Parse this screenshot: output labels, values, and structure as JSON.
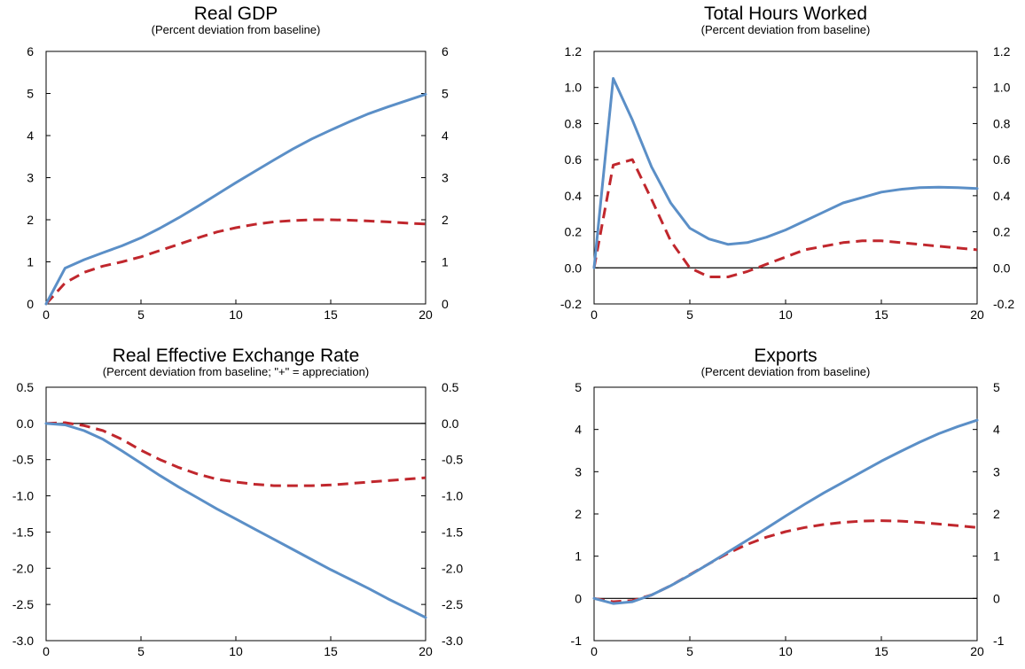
{
  "colors": {
    "solid_line": "#5b8fc7",
    "dashed_line": "#c0272d",
    "axis": "#000000"
  },
  "chart_data": [
    {
      "type": "line",
      "title": "Real GDP",
      "subtitle": "(Percent deviation from baseline)",
      "x": [
        0,
        1,
        2,
        3,
        4,
        5,
        6,
        7,
        8,
        9,
        10,
        11,
        12,
        13,
        14,
        15,
        16,
        17,
        18,
        19,
        20
      ],
      "xticks": [
        0,
        5,
        10,
        15,
        20
      ],
      "xlim": [
        0,
        20
      ],
      "ylim": [
        0,
        6
      ],
      "yticks": [
        0,
        1,
        2,
        3,
        4,
        5,
        6
      ],
      "ytick_labels": [
        "0",
        "1",
        "2",
        "3",
        "4",
        "5",
        "6"
      ],
      "zero_line": false,
      "series": [
        {
          "style": "solid",
          "values": [
            0,
            0.85,
            1.05,
            1.22,
            1.38,
            1.57,
            1.8,
            2.05,
            2.32,
            2.6,
            2.88,
            3.15,
            3.42,
            3.68,
            3.92,
            4.13,
            4.33,
            4.52,
            4.68,
            4.83,
            4.98
          ]
        },
        {
          "style": "dashed",
          "values": [
            0,
            0.5,
            0.75,
            0.9,
            1.0,
            1.12,
            1.27,
            1.42,
            1.57,
            1.71,
            1.81,
            1.89,
            1.95,
            1.98,
            2.0,
            2.0,
            1.99,
            1.97,
            1.95,
            1.92,
            1.9
          ]
        }
      ]
    },
    {
      "type": "line",
      "title": "Total Hours Worked",
      "subtitle": "(Percent deviation from baseline)",
      "x": [
        0,
        1,
        2,
        3,
        4,
        5,
        6,
        7,
        8,
        9,
        10,
        11,
        12,
        13,
        14,
        15,
        16,
        17,
        18,
        19,
        20
      ],
      "xticks": [
        0,
        5,
        10,
        15,
        20
      ],
      "xlim": [
        0,
        20
      ],
      "ylim": [
        -0.2,
        1.2
      ],
      "yticks": [
        -0.2,
        0,
        0.2,
        0.4,
        0.6,
        0.8,
        1.0,
        1.2
      ],
      "ytick_labels": [
        "-0.2",
        "0.0",
        "0.2",
        "0.4",
        "0.6",
        "0.8",
        "1.0",
        "1.2"
      ],
      "zero_line": true,
      "series": [
        {
          "style": "solid",
          "values": [
            0,
            1.05,
            0.82,
            0.56,
            0.36,
            0.22,
            0.16,
            0.13,
            0.14,
            0.17,
            0.21,
            0.26,
            0.31,
            0.36,
            0.39,
            0.42,
            0.435,
            0.445,
            0.447,
            0.445,
            0.44
          ]
        },
        {
          "style": "dashed",
          "values": [
            0,
            0.57,
            0.6,
            0.38,
            0.15,
            0.0,
            -0.05,
            -0.05,
            -0.02,
            0.02,
            0.06,
            0.1,
            0.12,
            0.14,
            0.15,
            0.15,
            0.14,
            0.13,
            0.12,
            0.11,
            0.1
          ]
        }
      ]
    },
    {
      "type": "line",
      "title": "Real Effective Exchange Rate",
      "subtitle": "(Percent deviation from baseline; \"+\" = appreciation)",
      "x": [
        0,
        1,
        2,
        3,
        4,
        5,
        6,
        7,
        8,
        9,
        10,
        11,
        12,
        13,
        14,
        15,
        16,
        17,
        18,
        19,
        20
      ],
      "xticks": [
        0,
        5,
        10,
        15,
        20
      ],
      "xlim": [
        0,
        20
      ],
      "ylim": [
        -3.0,
        0.5
      ],
      "yticks": [
        -3.0,
        -2.5,
        -2.0,
        -1.5,
        -1.0,
        -0.5,
        0,
        0.5
      ],
      "ytick_labels": [
        "-3.0",
        "-2.5",
        "-2.0",
        "-1.5",
        "-1.0",
        "-0.5",
        "0.0",
        "0.5"
      ],
      "zero_line": true,
      "series": [
        {
          "style": "solid",
          "values": [
            0,
            -0.02,
            -0.1,
            -0.22,
            -0.38,
            -0.55,
            -0.72,
            -0.88,
            -1.03,
            -1.18,
            -1.32,
            -1.46,
            -1.6,
            -1.74,
            -1.88,
            -2.02,
            -2.15,
            -2.28,
            -2.42,
            -2.55,
            -2.68
          ]
        },
        {
          "style": "dashed",
          "values": [
            0,
            0.01,
            -0.03,
            -0.1,
            -0.22,
            -0.37,
            -0.5,
            -0.61,
            -0.7,
            -0.77,
            -0.81,
            -0.84,
            -0.86,
            -0.86,
            -0.86,
            -0.85,
            -0.83,
            -0.81,
            -0.79,
            -0.77,
            -0.75
          ]
        }
      ]
    },
    {
      "type": "line",
      "title": "Exports",
      "subtitle": "(Percent deviation from baseline)",
      "x": [
        0,
        1,
        2,
        3,
        4,
        5,
        6,
        7,
        8,
        9,
        10,
        11,
        12,
        13,
        14,
        15,
        16,
        17,
        18,
        19,
        20
      ],
      "xticks": [
        0,
        5,
        10,
        15,
        20
      ],
      "xlim": [
        0,
        20
      ],
      "ylim": [
        -1,
        5
      ],
      "yticks": [
        -1,
        0,
        1,
        2,
        3,
        4,
        5
      ],
      "ytick_labels": [
        "-1",
        "0",
        "1",
        "2",
        "3",
        "4",
        "5"
      ],
      "zero_line": true,
      "series": [
        {
          "style": "solid",
          "values": [
            0,
            -0.12,
            -0.08,
            0.08,
            0.3,
            0.55,
            0.82,
            1.1,
            1.38,
            1.66,
            1.95,
            2.23,
            2.5,
            2.75,
            3.0,
            3.25,
            3.48,
            3.7,
            3.9,
            4.07,
            4.22
          ]
        },
        {
          "style": "dashed",
          "values": [
            0,
            -0.08,
            -0.05,
            0.08,
            0.3,
            0.56,
            0.82,
            1.07,
            1.28,
            1.45,
            1.58,
            1.68,
            1.75,
            1.8,
            1.83,
            1.84,
            1.83,
            1.8,
            1.76,
            1.72,
            1.68
          ]
        }
      ]
    }
  ]
}
